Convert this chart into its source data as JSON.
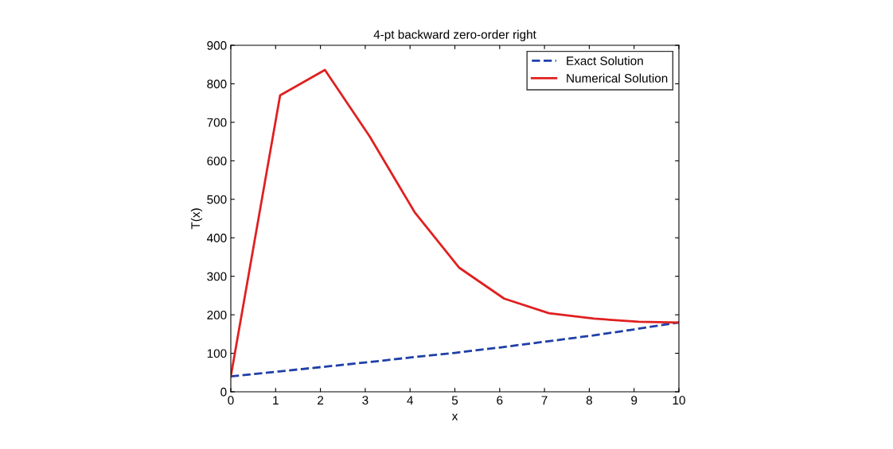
{
  "chart_data": {
    "type": "line",
    "title": "4-pt backward zero-order right",
    "xlabel": "x",
    "ylabel": "T(x)",
    "xlim": [
      0,
      10
    ],
    "ylim": [
      0,
      900
    ],
    "xticks": [
      0,
      1,
      2,
      3,
      4,
      5,
      6,
      7,
      8,
      9,
      10
    ],
    "yticks": [
      0,
      100,
      200,
      300,
      400,
      500,
      600,
      700,
      800,
      900
    ],
    "grid": false,
    "legend": "top right",
    "marker": "none",
    "series": [
      {
        "name": "Exact Solution",
        "color": "#1f3fa8",
        "line_style": "dashed",
        "x": [
          0,
          1,
          2,
          3,
          4,
          5,
          6,
          7,
          8,
          9,
          10
        ],
        "values": [
          40,
          52,
          64,
          76,
          89,
          101,
          115,
          130,
          145,
          162,
          180
        ]
      },
      {
        "name": "Numerical Solution",
        "color": "#e02020",
        "line_style": "solid",
        "x": [
          0,
          1.1,
          2.1,
          3.1,
          4.1,
          5.1,
          6.1,
          7.1,
          8.1,
          9.1,
          10
        ],
        "values": [
          40,
          770,
          836,
          663,
          467,
          322,
          242,
          204,
          190,
          182,
          180
        ]
      }
    ]
  }
}
